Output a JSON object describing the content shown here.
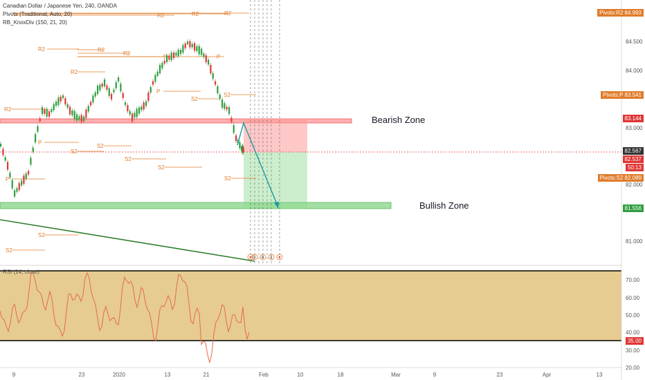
{
  "legend": {
    "symbol": "Canadian Dollar / Japanese Yen, 240, OANDA",
    "pivots": "Pivots (Traditional, Auto, 20)",
    "knoxdiv": "RB_KnoxDiv (150, 21, 20)"
  },
  "zones": {
    "bearish": "Bearish Zone",
    "bullish": "Bullish Zone"
  },
  "price_axis": {
    "ticks": [
      "84.500",
      "84.000",
      "83.000",
      "82.000",
      "81.000"
    ],
    "tags": [
      {
        "label": "Pivots:R2",
        "value": "84.993",
        "color": "#e07b2a"
      },
      {
        "label": "Pivots:P",
        "value": "83.541",
        "color": "#e07b2a"
      },
      {
        "label": "",
        "value": "83.144",
        "color": "#e03535"
      },
      {
        "label": "",
        "value": "82.567",
        "color": "#333333"
      },
      {
        "label": "",
        "value": "82.537",
        "color": "#e03535"
      },
      {
        "label": "",
        "value": "50:13",
        "color": "#e03535"
      },
      {
        "label": "Pivots:S2",
        "value": "82.089",
        "color": "#e07b2a"
      },
      {
        "label": "",
        "value": "81.556",
        "color": "#2e9e3e"
      }
    ]
  },
  "rsi_axis": {
    "title": "RSI (14, close)",
    "ticks": [
      "70.00",
      "60.00",
      "50.00",
      "40.00",
      "30.00",
      "20.00"
    ],
    "level_tag": "35.00"
  },
  "time_axis": {
    "ticks": [
      "9",
      "23",
      "2020",
      "13",
      "21",
      "Feb",
      "10",
      "18",
      "Mar",
      "9",
      "23",
      "Apr",
      "13"
    ]
  },
  "pivot_labels": [
    "R2",
    "R2",
    "R2",
    "R2",
    "R2",
    "R2",
    "R2",
    "R2",
    "P",
    "P",
    "P",
    "P",
    "P",
    "S2",
    "S2",
    "S2",
    "S2",
    "S2",
    "S2",
    "S2",
    "S2"
  ],
  "divergence_marks": [
    "3",
    "8",
    "3"
  ],
  "colors": {
    "bear": "#ff9a9a",
    "bull": "#8ed98e",
    "pivot": "#e07b2a",
    "rsi_band": "#e3c684",
    "trend": "#2f7d2f",
    "arrow": "#1a9aa0"
  }
}
